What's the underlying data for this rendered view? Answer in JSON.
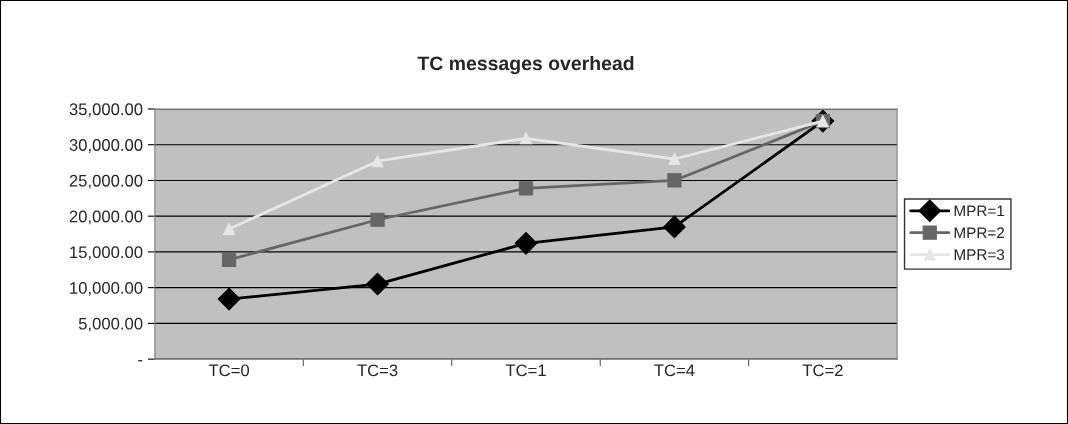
{
  "chart_data": {
    "type": "line",
    "title": "TC messages overhead",
    "categories": [
      "TC=0",
      "TC=3",
      "TC=1",
      "TC=4",
      "TC=2"
    ],
    "series": [
      {
        "name": "MPR=1",
        "color": "#000000",
        "marker": "diamond",
        "values": [
          8400,
          10500,
          16200,
          18500,
          33300
        ]
      },
      {
        "name": "MPR=2",
        "color": "#666666",
        "marker": "square",
        "values": [
          13900,
          19500,
          23900,
          25000,
          33300
        ]
      },
      {
        "name": "MPR=3",
        "color": "#e6e6e6",
        "marker": "triangle",
        "values": [
          18200,
          27700,
          30900,
          28000,
          33300
        ]
      }
    ],
    "ylim": [
      0,
      35000
    ],
    "yticks": [
      {
        "value": 0,
        "label": "-"
      },
      {
        "value": 5000,
        "label": "5,000.00"
      },
      {
        "value": 10000,
        "label": "10,000.00"
      },
      {
        "value": 15000,
        "label": "15,000.00"
      },
      {
        "value": 20000,
        "label": "20,000.00"
      },
      {
        "value": 25000,
        "label": "25,000.00"
      },
      {
        "value": 30000,
        "label": "30,000.00"
      },
      {
        "value": 35000,
        "label": "35,000.00"
      }
    ],
    "grid": "y",
    "legend": "right",
    "line_style": "solid"
  }
}
